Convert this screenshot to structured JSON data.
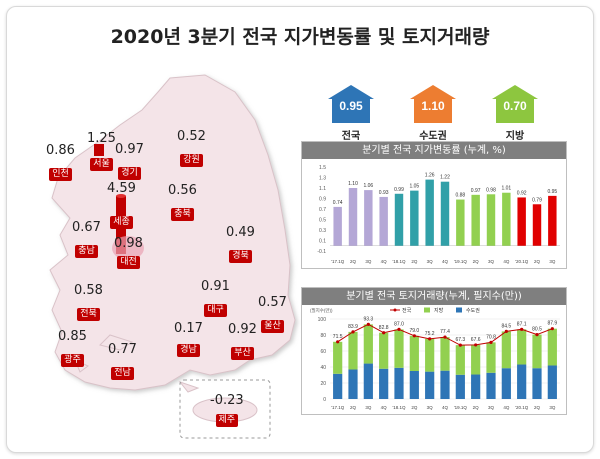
{
  "title": "2020년 3분기 전국 지가변동률 및 토지거래량",
  "summary": [
    {
      "value": "0.95",
      "label": "전국",
      "color": "#2e75b6"
    },
    {
      "value": "1.10",
      "label": "수도권",
      "color": "#ed7d31"
    },
    {
      "value": "0.70",
      "label": "지방",
      "color": "#8dc63f"
    }
  ],
  "map": {
    "regions": [
      {
        "id": "incheon",
        "name": "인천",
        "value": "0.86"
      },
      {
        "id": "seoul",
        "name": "서울",
        "value": "1.25"
      },
      {
        "id": "gyeonggi",
        "name": "경기",
        "value": "0.97"
      },
      {
        "id": "gangwon",
        "name": "강원",
        "value": "0.52"
      },
      {
        "id": "sejong",
        "name": "세종",
        "value": "4.59"
      },
      {
        "id": "chungbuk",
        "name": "충북",
        "value": "0.56"
      },
      {
        "id": "chungnam",
        "name": "충남",
        "value": "0.67"
      },
      {
        "id": "daejeon",
        "name": "대전",
        "value": "0.98"
      },
      {
        "id": "gyeongbuk",
        "name": "경북",
        "value": "0.49"
      },
      {
        "id": "jeonbuk",
        "name": "전북",
        "value": "0.58"
      },
      {
        "id": "daegu",
        "name": "대구",
        "value": "0.91"
      },
      {
        "id": "ulsan",
        "name": "울산",
        "value": "0.57"
      },
      {
        "id": "gwangju",
        "name": "광주",
        "value": "0.85"
      },
      {
        "id": "jeonnam",
        "name": "전남",
        "value": "0.77"
      },
      {
        "id": "gyeongnam",
        "name": "경남",
        "value": "0.17"
      },
      {
        "id": "busan",
        "name": "부산",
        "value": "0.92"
      },
      {
        "id": "jeju",
        "name": "제주",
        "value": "-0.23"
      }
    ]
  },
  "chart_data": [
    {
      "type": "bar",
      "title": "분기별 전국 지가변동률 (누계, %)",
      "categories": [
        "'17.1Q",
        "2Q",
        "3Q",
        "4Q",
        "'18.1Q",
        "2Q",
        "3Q",
        "4Q",
        "'19.1Q",
        "2Q",
        "3Q",
        "4Q",
        "'20.1Q",
        "2Q",
        "3Q"
      ],
      "values": [
        0.74,
        1.1,
        1.06,
        0.93,
        0.99,
        1.05,
        1.26,
        1.22,
        0.88,
        0.97,
        0.98,
        1.01,
        0.92,
        0.79,
        0.95
      ],
      "year_colors": [
        "#b4a7d6",
        "#b4a7d6",
        "#b4a7d6",
        "#b4a7d6",
        "#31a0a8",
        "#31a0a8",
        "#31a0a8",
        "#31a0a8",
        "#92d050",
        "#92d050",
        "#92d050",
        "#92d050",
        "#e00000",
        "#e00000",
        "#e00000"
      ],
      "yticks": [
        "1.5",
        "1.3",
        "1.1",
        "0.9",
        "0.7",
        "0.5",
        "0.3",
        "0.1",
        "-0.1"
      ],
      "ylim": [
        -0.1,
        1.5
      ]
    },
    {
      "type": "bar",
      "title": "분기별 전국 토지거래량(누계, 필지수(만))",
      "unit": "(필지수(만))",
      "categories": [
        "'17.1Q",
        "2Q",
        "3Q",
        "4Q",
        "'18.1Q",
        "2Q",
        "3Q",
        "4Q",
        "'19.1Q",
        "2Q",
        "3Q",
        "4Q",
        "'20.1Q",
        "2Q",
        "3Q"
      ],
      "series": [
        {
          "name": "전국",
          "values": [
            71.5,
            83.9,
            93.3,
            82.8,
            87.0,
            79.0,
            75.2,
            77.4,
            67.3,
            67.6,
            70.8,
            84.5,
            87.1,
            80.5,
            87.9
          ],
          "color": "#c00000"
        },
        {
          "name": "지방",
          "values": [
            40,
            47,
            49,
            45,
            48,
            44,
            41,
            42,
            37,
            37,
            38,
            46,
            44,
            42,
            46
          ],
          "color": "#92d050"
        },
        {
          "name": "수도권",
          "values": [
            31.5,
            36.9,
            44.3,
            37.8,
            39.0,
            35.0,
            34.2,
            35.4,
            30.3,
            30.6,
            32.8,
            38.5,
            43.1,
            38.5,
            41.9
          ],
          "color": "#2e75b6"
        }
      ],
      "yticks": [
        "100",
        "80",
        "60",
        "40",
        "20",
        "0"
      ],
      "ylim": [
        0,
        100
      ]
    }
  ]
}
